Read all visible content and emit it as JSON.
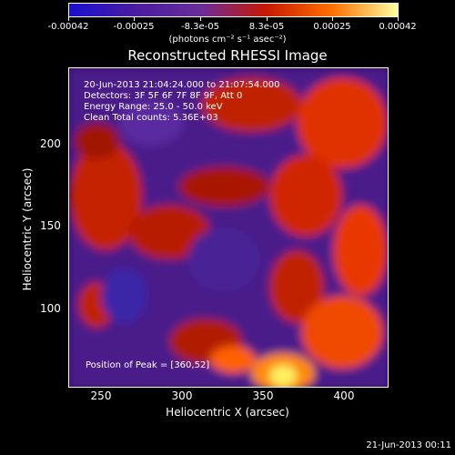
{
  "colorbar": {
    "ticks": [
      "-0.00042",
      "-0.00025",
      "-8.3e-05",
      "8.3e-05",
      "0.00025",
      "0.00042"
    ],
    "units": "(photons cm⁻² s⁻¹ asec⁻²)",
    "colors": [
      "#1a10d0",
      "#4a1ca0",
      "#6a2c9a",
      "#c81800",
      "#ff7000",
      "#ffffa0"
    ]
  },
  "title": "Reconstructed RHESSI Image",
  "info": {
    "time_range": "20-Jun-2013 21:04:24.000 to 21:07:54.000",
    "detectors": "Detectors: 3F 5F 6F 7F 8F 9F, Att 0",
    "energy": "Energy Range: 25.0 - 50.0 keV",
    "clean": "Clean    Total counts: 5.36E+03"
  },
  "peak": "Position of Peak = [360,52]",
  "x_ticks": [
    "250",
    "300",
    "350",
    "400"
  ],
  "y_ticks": [
    "200",
    "150",
    "100"
  ],
  "xlabel": "Heliocentric X (arcsec)",
  "ylabel": "Heliocentric Y (arcsec)",
  "timestamp": "21-Jun-2013 00:11"
}
